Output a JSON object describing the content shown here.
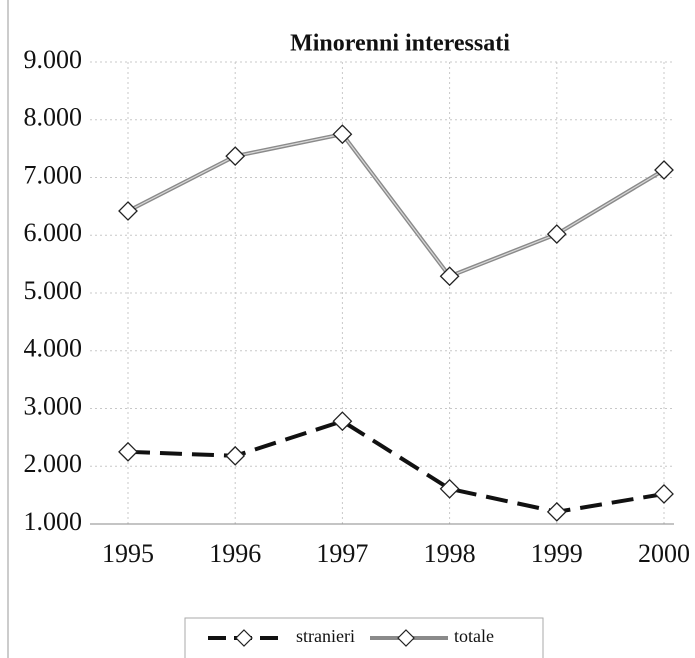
{
  "chart_data": {
    "type": "line",
    "title": "Minorenni interessati",
    "categories": [
      "1995",
      "1996",
      "1997",
      "1998",
      "1999",
      "2000"
    ],
    "series": [
      {
        "name": "stranieri",
        "color": "#111111",
        "values": [
          2250,
          2180,
          2780,
          1610,
          1210,
          1520
        ]
      },
      {
        "name": "totale",
        "color": "#8a8a8a",
        "values": [
          6420,
          7370,
          7750,
          5290,
          6020,
          7130
        ]
      }
    ],
    "ylim": [
      1000,
      9000
    ],
    "yticks": [
      {
        "value": 1000,
        "label": "1.000"
      },
      {
        "value": 2000,
        "label": "2.000"
      },
      {
        "value": 3000,
        "label": "3.000"
      },
      {
        "value": 4000,
        "label": "4.000"
      },
      {
        "value": 5000,
        "label": "5.000"
      },
      {
        "value": 6000,
        "label": "6.000"
      },
      {
        "value": 7000,
        "label": "7.000"
      },
      {
        "value": 8000,
        "label": "8.000"
      },
      {
        "value": 9000,
        "label": "9.000"
      }
    ],
    "grid": true
  }
}
